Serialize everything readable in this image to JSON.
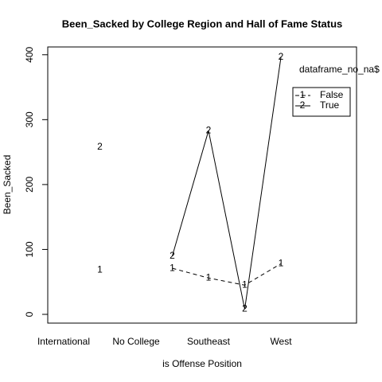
{
  "chart_data": {
    "type": "line",
    "title": "Been_Sacked by College Region and Hall of Fame Status",
    "x_label": "is Offense Position",
    "y_label": "Been_Sacked",
    "categories": [
      "International",
      null,
      "No College",
      null,
      "Southeast",
      null,
      "West"
    ],
    "legend_title": "dataframe_no_na$",
    "series": [
      {
        "name": "False",
        "marker": "1",
        "color": "#000000",
        "dash": true,
        "values": [
          null,
          68,
          null,
          71,
          56,
          45,
          78
        ]
      },
      {
        "name": "True",
        "marker": "2",
        "color": "#000000",
        "dash": false,
        "values": [
          null,
          258,
          null,
          90,
          283,
          8,
          396
        ]
      }
    ],
    "ylim": [
      -13.5,
      412
    ],
    "yticks": [
      0,
      100,
      200,
      300,
      400
    ],
    "legend": "top-right"
  }
}
